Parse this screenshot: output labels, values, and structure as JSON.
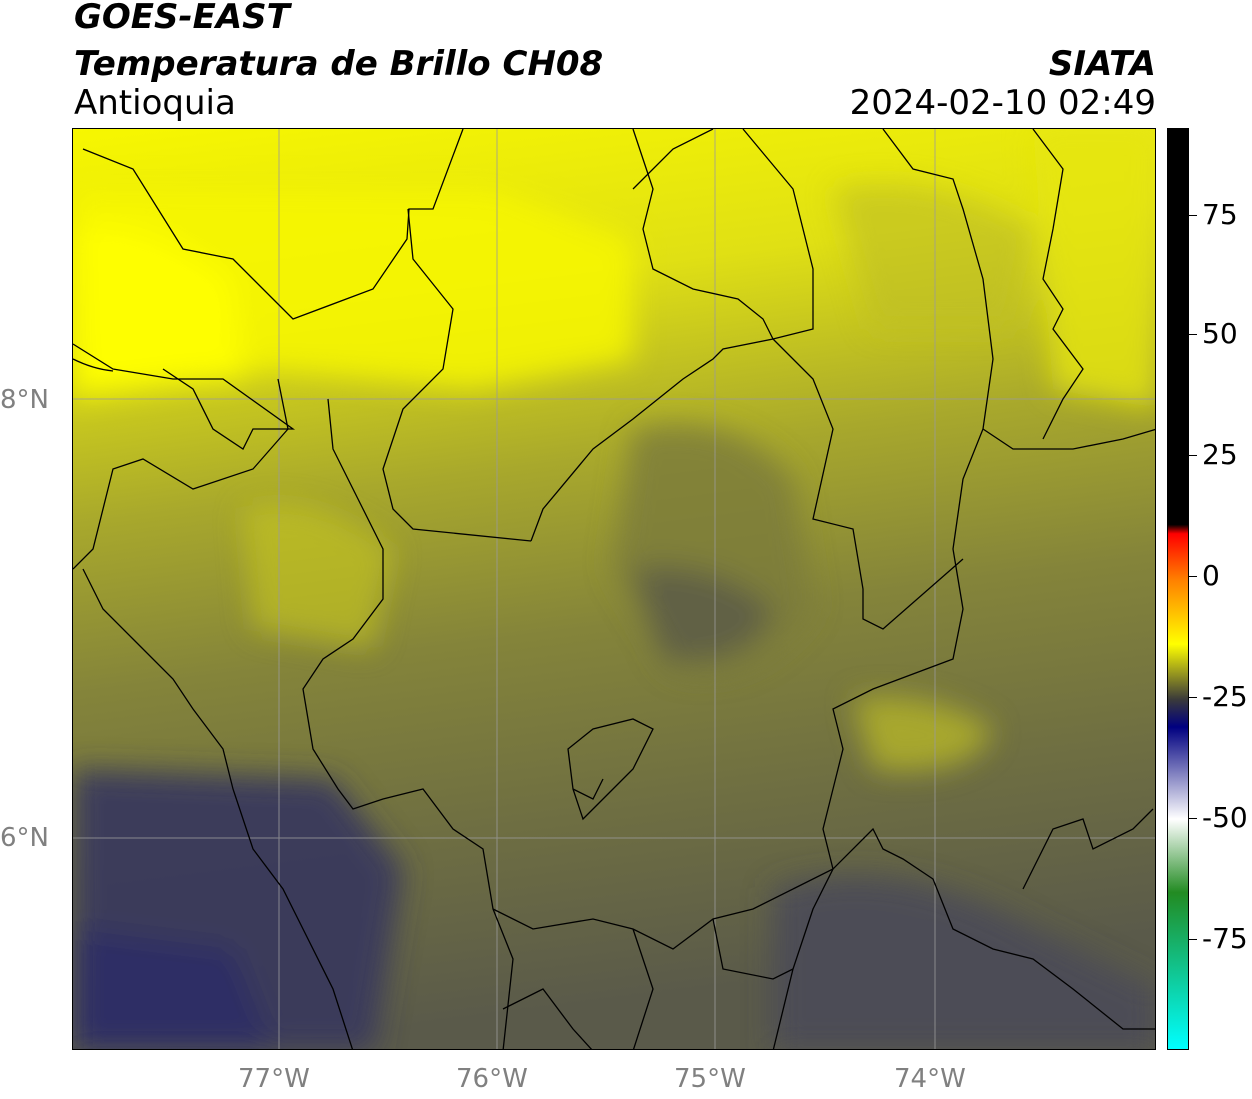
{
  "header": {
    "title_line1": "GOES-EAST",
    "title_line2": "Temperatura de Brillo CH08",
    "subtitle": "Antioquia",
    "organization": "SIATA",
    "datetime": "2024-02-10 02:49"
  },
  "map": {
    "lon_labels": [
      "77°W",
      "76°W",
      "75°W",
      "74°W"
    ],
    "lat_labels": [
      "8°N",
      "6°N"
    ],
    "colors": {
      "bright_yellow": "#f7f700",
      "yellow": "#dede10",
      "olive_light": "#b4b428",
      "olive": "#8c8c34",
      "olive_dark": "#6e6e42",
      "slate": "#4e4e56",
      "navy": "#34345e",
      "border": "#000000",
      "grid": "#9a9a9a"
    }
  },
  "colorbar": {
    "tick_labels": [
      "75",
      "50",
      "25",
      "0",
      "-25",
      "-50",
      "-75"
    ],
    "stops": [
      "#000000",
      "#000000",
      "#ff0000",
      "#ff8000",
      "#ffff00",
      "#3a3a3a",
      "#000080",
      "#ffffff",
      "#228b22",
      "#00ffff"
    ]
  }
}
